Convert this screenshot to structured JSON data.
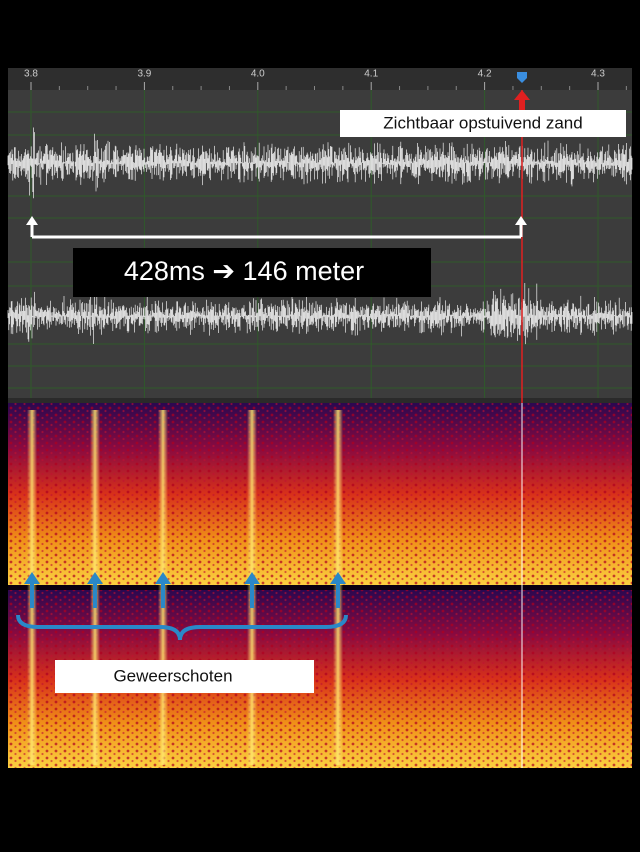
{
  "timeline": {
    "ticks": [
      "3.8",
      "3.9",
      "4.0",
      "4.1",
      "4.2",
      "4.3"
    ]
  },
  "annotations": {
    "sand": "Zichtbaar opstuivend zand",
    "delay": "428ms ➔ 146 meter",
    "shots": "Geweerschoten"
  }
}
